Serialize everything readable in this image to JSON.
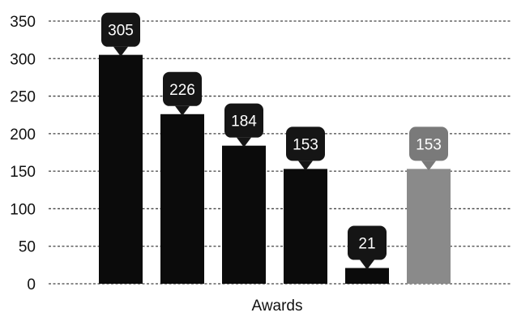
{
  "chart_data": {
    "type": "bar",
    "categories": [
      "",
      "",
      "",
      "",
      "",
      ""
    ],
    "values": [
      305,
      226,
      184,
      153,
      21,
      153
    ],
    "data_labels": [
      "305",
      "226",
      "184",
      "153",
      "21",
      "153"
    ],
    "bar_colors": [
      "#0b0b0b",
      "#0b0b0b",
      "#0b0b0b",
      "#0b0b0b",
      "#0b0b0b",
      "#8a8a8a"
    ],
    "label_bubble_colors": [
      "#151515",
      "#151515",
      "#151515",
      "#151515",
      "#151515",
      "#7a7a7a"
    ],
    "xlabel": "Awards",
    "ylabel": "",
    "ylim": [
      0,
      350
    ],
    "yticks": [
      0,
      50,
      100,
      150,
      200,
      250,
      300,
      350
    ],
    "ytick_labels": [
      "0",
      "50",
      "100",
      "150",
      "200",
      "250",
      "300",
      "350"
    ],
    "grid": true,
    "legend": "none"
  }
}
